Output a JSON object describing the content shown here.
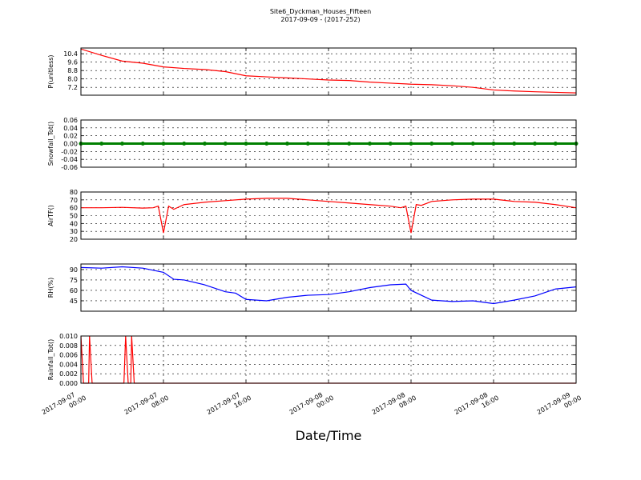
{
  "header": {
    "title": "Site6_Dyckman_Houses_Fifteen",
    "subtitle": "2017-09-09 - (2017-252)"
  },
  "chart_data": [
    {
      "type": "line",
      "ylabel": "P(unitless)",
      "color": "#ff0000",
      "grid": true,
      "xlim": [
        "2017-09-07 00:00",
        "2017-09-09 00:00"
      ],
      "xticks": [
        "2017-09-07 00:00",
        "2017-09-07 08:00",
        "2017-09-07 16:00",
        "2017-09-08 00:00",
        "2017-09-08 08:00",
        "2017-09-08 16:00",
        "2017-09-09 00:00"
      ],
      "ylim": [
        6.45,
        10.95
      ],
      "yticks": [
        7.2,
        {
          "value": 8.0,
          "label": "8.0"
        },
        8.8,
        9.6,
        10.4
      ],
      "x": [
        "2017-09-07 00:00",
        "2017-09-07 02:00",
        "2017-09-07 04:00",
        "2017-09-07 06:00",
        "2017-09-07 08:00",
        "2017-09-07 10:00",
        "2017-09-07 12:00",
        "2017-09-07 14:00",
        "2017-09-07 16:00",
        "2017-09-07 18:00",
        "2017-09-07 20:00",
        "2017-09-07 22:00",
        "2017-09-08 00:00",
        "2017-09-08 02:00",
        "2017-09-08 04:00",
        "2017-09-08 06:00",
        "2017-09-08 08:00",
        "2017-09-08 10:00",
        "2017-09-08 12:00",
        "2017-09-08 14:00",
        "2017-09-08 16:00",
        "2017-09-08 18:00",
        "2017-09-08 20:00",
        "2017-09-08 22:00",
        "2017-09-09 00:00"
      ],
      "values": [
        10.85,
        10.25,
        9.7,
        9.5,
        9.15,
        9.0,
        8.9,
        8.7,
        8.3,
        8.2,
        8.1,
        8.0,
        7.9,
        7.85,
        7.7,
        7.6,
        7.5,
        7.45,
        7.35,
        7.2,
        6.95,
        6.85,
        6.78,
        6.72,
        6.67
      ]
    },
    {
      "type": "line",
      "ylabel": "Snowfall_Tot()",
      "color": "#008000",
      "marker": "o",
      "grid": true,
      "xlim": [
        "2017-09-07 00:00",
        "2017-09-09 00:00"
      ],
      "xticks": [
        "2017-09-07 00:00",
        "2017-09-07 08:00",
        "2017-09-07 16:00",
        "2017-09-08 00:00",
        "2017-09-08 08:00",
        "2017-09-08 16:00",
        "2017-09-09 00:00"
      ],
      "ylim": [
        -0.06,
        0.06
      ],
      "yticks": [
        -0.06,
        -0.04,
        -0.02,
        {
          "value": 0,
          "label": "0.00"
        },
        0.02,
        0.04,
        0.06
      ],
      "x": [
        "2017-09-07 00:00",
        "2017-09-07 02:00",
        "2017-09-07 04:00",
        "2017-09-07 06:00",
        "2017-09-07 08:00",
        "2017-09-07 10:00",
        "2017-09-07 12:00",
        "2017-09-07 14:00",
        "2017-09-07 16:00",
        "2017-09-07 18:00",
        "2017-09-07 20:00",
        "2017-09-07 22:00",
        "2017-09-08 00:00",
        "2017-09-08 02:00",
        "2017-09-08 04:00",
        "2017-09-08 06:00",
        "2017-09-08 08:00",
        "2017-09-08 10:00",
        "2017-09-08 12:00",
        "2017-09-08 14:00",
        "2017-09-08 16:00",
        "2017-09-08 18:00",
        "2017-09-08 20:00",
        "2017-09-08 22:00",
        "2017-09-09 00:00"
      ],
      "values": [
        0,
        0,
        0,
        0,
        0,
        0,
        0,
        0,
        0,
        0,
        0,
        0,
        0,
        0,
        0,
        0,
        0,
        0,
        0,
        0,
        0,
        0,
        0,
        0,
        0
      ]
    },
    {
      "type": "line",
      "ylabel": "AirTF()",
      "color": "#ff0000",
      "grid": true,
      "xlim": [
        "2017-09-07 00:00",
        "2017-09-09 00:00"
      ],
      "xticks": [
        "2017-09-07 00:00",
        "2017-09-07 08:00",
        "2017-09-07 16:00",
        "2017-09-08 00:00",
        "2017-09-08 08:00",
        "2017-09-08 16:00",
        "2017-09-09 00:00"
      ],
      "ylim": [
        20,
        80
      ],
      "yticks": [
        20,
        30,
        40,
        50,
        60,
        70,
        80
      ],
      "x": [
        "2017-09-07 00:00",
        "2017-09-07 02:00",
        "2017-09-07 04:00",
        "2017-09-07 06:00",
        "2017-09-07 07:00",
        "2017-09-07 07:30",
        "2017-09-07 08:00",
        "2017-09-07 08:30",
        "2017-09-07 09:00",
        "2017-09-07 10:00",
        "2017-09-07 12:00",
        "2017-09-07 14:00",
        "2017-09-07 16:00",
        "2017-09-07 18:00",
        "2017-09-07 20:00",
        "2017-09-07 22:00",
        "2017-09-08 00:00",
        "2017-09-08 02:00",
        "2017-09-08 04:00",
        "2017-09-08 06:00",
        "2017-09-08 07:00",
        "2017-09-08 07:30",
        "2017-09-08 08:00",
        "2017-09-08 08:30",
        "2017-09-08 09:00",
        "2017-09-08 10:00",
        "2017-09-08 12:00",
        "2017-09-08 14:00",
        "2017-09-08 16:00",
        "2017-09-08 18:00",
        "2017-09-08 20:00",
        "2017-09-08 22:00",
        "2017-09-09 00:00"
      ],
      "values": [
        60,
        60,
        60.5,
        59.5,
        60,
        62,
        28,
        62,
        58,
        64,
        67,
        69,
        71,
        72,
        72,
        70,
        68,
        66,
        64,
        62,
        60,
        62,
        28,
        64,
        63,
        68,
        70,
        71,
        71,
        68,
        67,
        64,
        60
      ]
    },
    {
      "type": "line",
      "ylabel": "RH(%)",
      "color": "#0000ff",
      "grid": true,
      "xlim": [
        "2017-09-07 00:00",
        "2017-09-09 00:00"
      ],
      "xticks": [
        "2017-09-07 00:00",
        "2017-09-07 08:00",
        "2017-09-07 16:00",
        "2017-09-08 00:00",
        "2017-09-08 08:00",
        "2017-09-08 16:00",
        "2017-09-09 00:00"
      ],
      "ylim": [
        30,
        98
      ],
      "yticks": [
        45,
        60,
        75,
        90
      ],
      "x": [
        "2017-09-07 00:00",
        "2017-09-07 02:00",
        "2017-09-07 04:00",
        "2017-09-07 06:00",
        "2017-09-07 08:00",
        "2017-09-07 09:00",
        "2017-09-07 10:00",
        "2017-09-07 12:00",
        "2017-09-07 14:00",
        "2017-09-07 15:00",
        "2017-09-07 16:00",
        "2017-09-07 18:00",
        "2017-09-07 20:00",
        "2017-09-07 22:00",
        "2017-09-08 00:00",
        "2017-09-08 02:00",
        "2017-09-08 04:00",
        "2017-09-08 06:00",
        "2017-09-08 07:30",
        "2017-09-08 08:00",
        "2017-09-08 10:00",
        "2017-09-08 12:00",
        "2017-09-08 14:00",
        "2017-09-08 16:00",
        "2017-09-08 18:00",
        "2017-09-08 20:00",
        "2017-09-08 22:00",
        "2017-09-09 00:00"
      ],
      "values": [
        93,
        92,
        94,
        92,
        86,
        76,
        75,
        68,
        58,
        56,
        47,
        45,
        50,
        53,
        54,
        58,
        64,
        68,
        69,
        60,
        46,
        44,
        45,
        41,
        46,
        52,
        62,
        65
      ]
    },
    {
      "type": "line",
      "ylabel": "Rainfall_Tot()",
      "color": "#ff0000",
      "grid": true,
      "xlabel": "Date/Time",
      "xlim": [
        "2017-09-07 00:00",
        "2017-09-09 00:00"
      ],
      "xticks": [
        "2017-09-07 00:00",
        "2017-09-07 08:00",
        "2017-09-07 16:00",
        "2017-09-08 00:00",
        "2017-09-08 08:00",
        "2017-09-08 16:00",
        "2017-09-09 00:00"
      ],
      "ylim": [
        0,
        0.01
      ],
      "yticks": [
        {
          "value": 0,
          "label": "0.000"
        },
        0.002,
        0.004,
        0.006,
        0.008,
        {
          "value": 0.01,
          "label": "0.010"
        }
      ],
      "x": [
        "2017-09-07 00:00",
        "2017-09-07 00:15",
        "2017-09-07 00:45",
        "2017-09-07 00:50",
        "2017-09-07 01:05",
        "2017-09-07 04:10",
        "2017-09-07 04:20",
        "2017-09-07 04:35",
        "2017-09-07 04:50",
        "2017-09-07 04:55",
        "2017-09-07 05:10",
        "2017-09-09 00:00"
      ],
      "values": [
        0.01,
        0,
        0,
        0.01,
        0,
        0,
        0.01,
        0,
        0,
        0.01,
        0,
        0
      ]
    }
  ]
}
